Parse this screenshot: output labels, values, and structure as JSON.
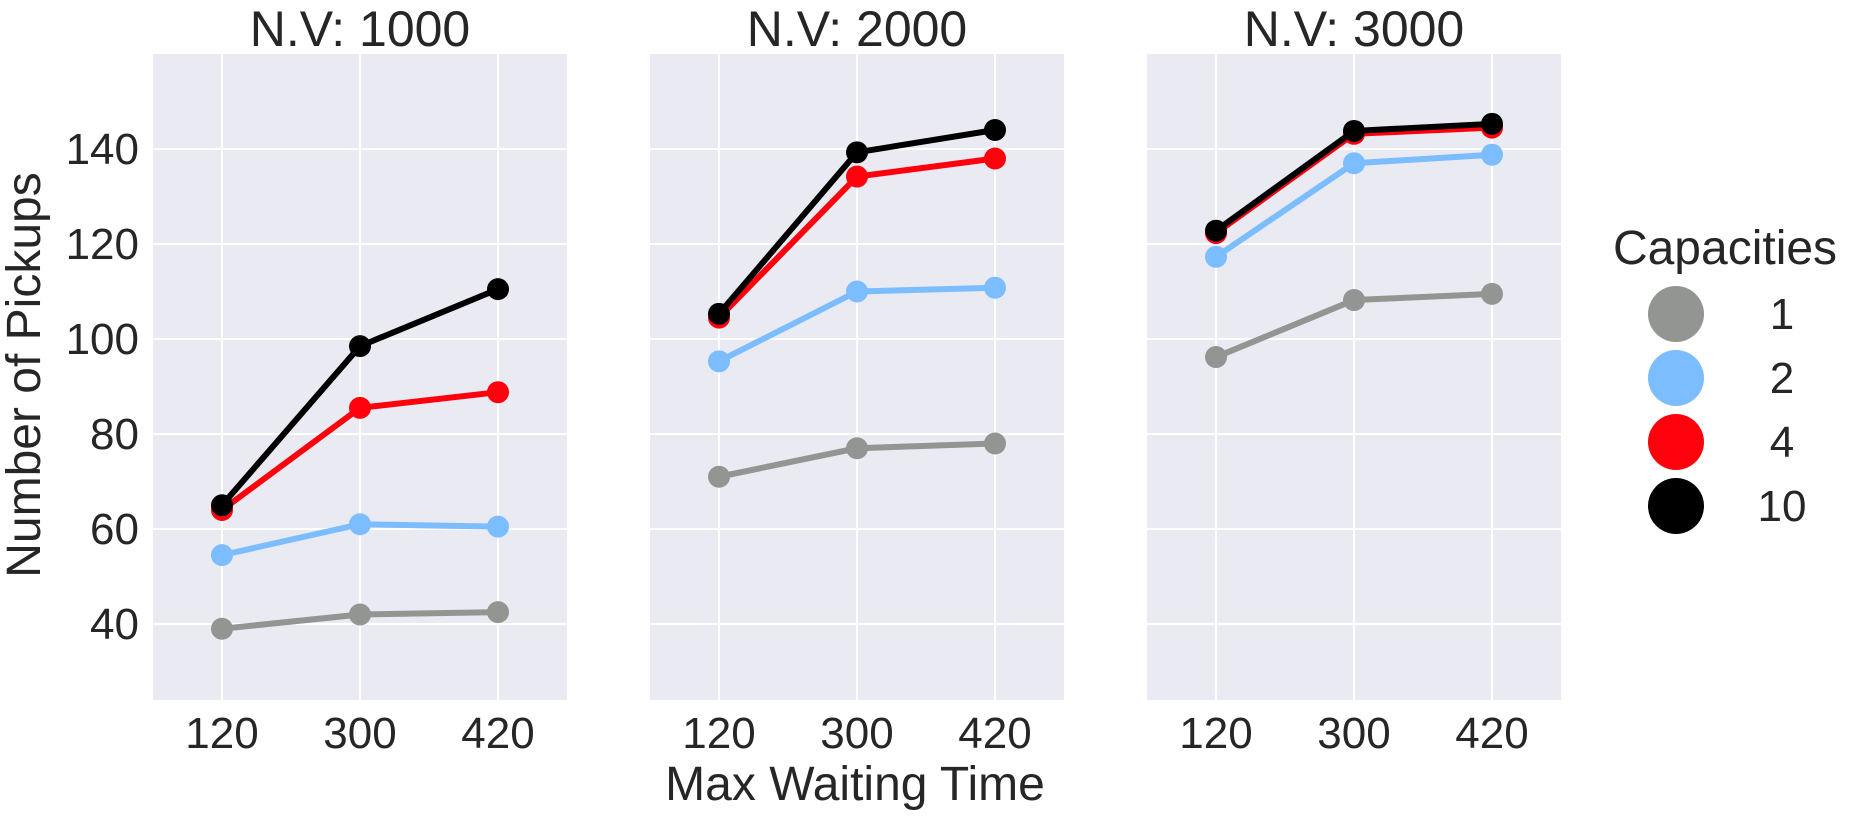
{
  "figure": {
    "ylabel": "Number of Pickups",
    "xlabel": "Max Waiting Time",
    "legend_title": "Capacities",
    "legend_placement": "right"
  },
  "colors": {
    "background": "#eaeaf2",
    "grid": "#ffffff",
    "text": "#262626"
  },
  "chart_data": [
    {
      "type": "line",
      "title": "N.V: 1000",
      "categories": [
        "120",
        "300",
        "420"
      ],
      "ylim": [
        24,
        160
      ],
      "yticks": [
        40,
        60,
        80,
        100,
        120,
        140
      ],
      "grid": true,
      "series": [
        {
          "name": "1",
          "color": "#929591",
          "values": [
            39,
            42,
            42.5
          ]
        },
        {
          "name": "2",
          "color": "#7bbdff",
          "values": [
            54.5,
            61,
            60.5
          ]
        },
        {
          "name": "4",
          "color": "#ff000d",
          "values": [
            64,
            85.5,
            88.8
          ]
        },
        {
          "name": "10",
          "color": "#000000",
          "values": [
            65,
            98.5,
            110.5
          ]
        }
      ]
    },
    {
      "type": "line",
      "title": "N.V: 2000",
      "categories": [
        "120",
        "300",
        "420"
      ],
      "ylim": [
        24,
        160
      ],
      "yticks": [
        40,
        60,
        80,
        100,
        120,
        140
      ],
      "grid": true,
      "series": [
        {
          "name": "1",
          "color": "#929591",
          "values": [
            71,
            77,
            78
          ]
        },
        {
          "name": "2",
          "color": "#7bbdff",
          "values": [
            95.3,
            110,
            110.8
          ]
        },
        {
          "name": "4",
          "color": "#ff000d",
          "values": [
            104.5,
            134.2,
            138
          ]
        },
        {
          "name": "10",
          "color": "#000000",
          "values": [
            105.3,
            139.3,
            144
          ]
        }
      ]
    },
    {
      "type": "line",
      "title": "N.V: 3000",
      "categories": [
        "120",
        "300",
        "420"
      ],
      "ylim": [
        24,
        160
      ],
      "yticks": [
        40,
        60,
        80,
        100,
        120,
        140
      ],
      "grid": true,
      "series": [
        {
          "name": "1",
          "color": "#929591",
          "values": [
            96.2,
            108.2,
            109.5
          ]
        },
        {
          "name": "2",
          "color": "#7bbdff",
          "values": [
            117.3,
            137,
            138.8
          ]
        },
        {
          "name": "4",
          "color": "#ff000d",
          "values": [
            122.3,
            143.2,
            144.5
          ]
        },
        {
          "name": "10",
          "color": "#000000",
          "values": [
            122.8,
            143.8,
            145.3
          ]
        }
      ]
    }
  ]
}
